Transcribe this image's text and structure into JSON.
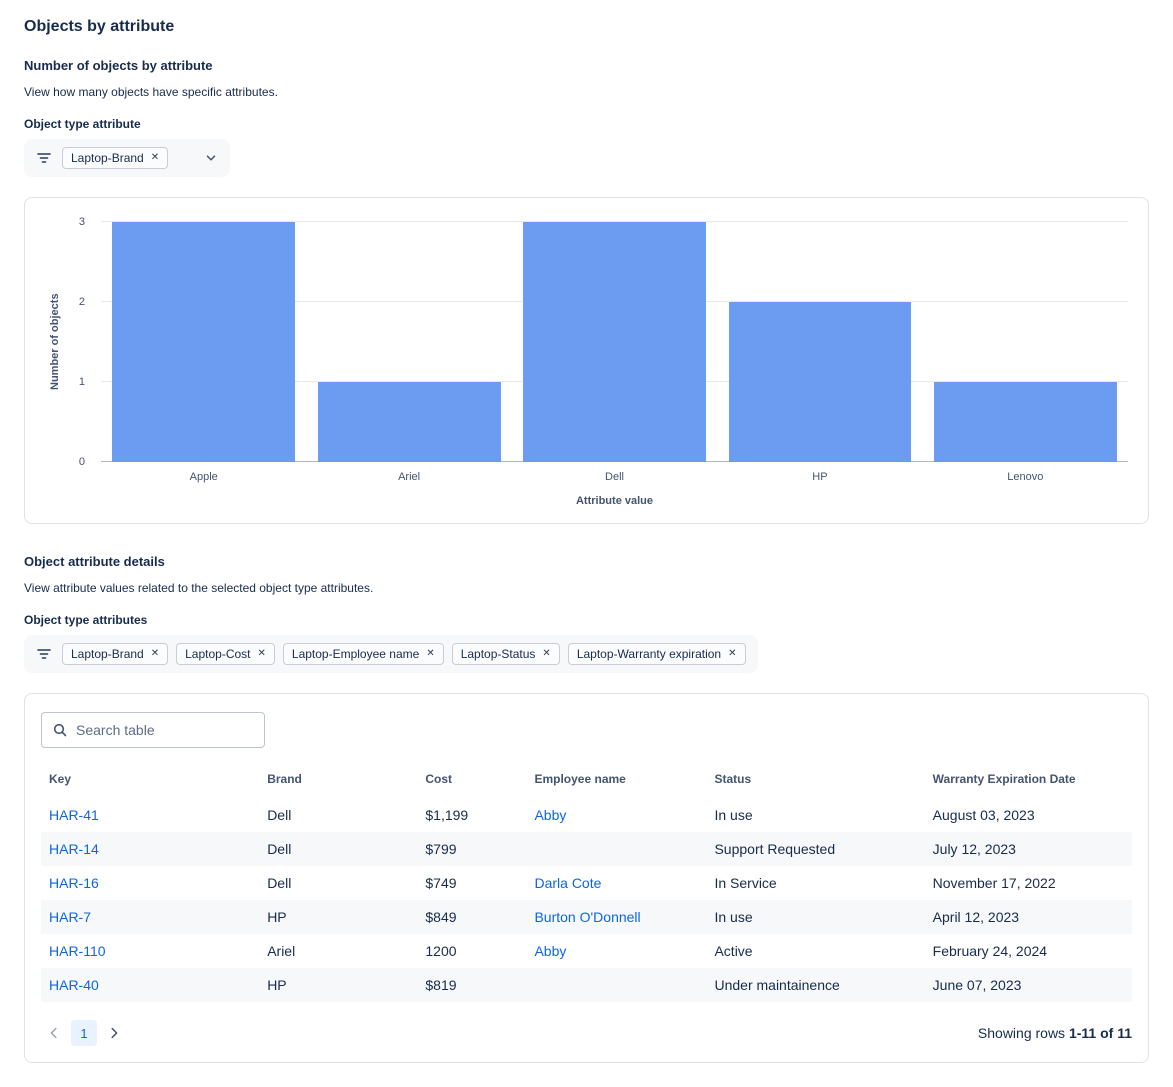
{
  "page": {
    "title": "Objects by attribute"
  },
  "chart_section": {
    "heading": "Number of objects by attribute",
    "description": "View how many objects have specific attributes.",
    "filter_label": "Object type attribute",
    "filter_chips": [
      {
        "label": "Laptop-Brand"
      }
    ]
  },
  "chart_data": {
    "type": "bar",
    "categories": [
      "Apple",
      "Ariel",
      "Dell",
      "HP",
      "Lenovo"
    ],
    "values": [
      3,
      1,
      3,
      2,
      1
    ],
    "xlabel": "Attribute value",
    "ylabel": "Number of objects",
    "ylim": [
      0,
      3
    ],
    "yticks": [
      0,
      1,
      2,
      3
    ],
    "bar_color": "#6C9BF2",
    "grid": true,
    "legend": false
  },
  "details_section": {
    "heading": "Object attribute details",
    "description": "View attribute values related to the selected object type attributes.",
    "filter_label": "Object type attributes",
    "filter_chips": [
      {
        "label": "Laptop-Brand"
      },
      {
        "label": "Laptop-Cost"
      },
      {
        "label": "Laptop-Employee name"
      },
      {
        "label": "Laptop-Status"
      },
      {
        "label": "Laptop-Warranty expiration"
      }
    ]
  },
  "table": {
    "search_placeholder": "Search table",
    "columns": [
      "Key",
      "Brand",
      "Cost",
      "Employee name",
      "Status",
      "Warranty Expiration Date"
    ],
    "rows": [
      {
        "key": "HAR-41",
        "brand": "Dell",
        "cost": "$1,199",
        "employee": "Abby",
        "status": "In use",
        "warranty": "August 03, 2023"
      },
      {
        "key": "HAR-14",
        "brand": "Dell",
        "cost": "$799",
        "employee": "",
        "status": "Support Requested",
        "warranty": "July 12, 2023"
      },
      {
        "key": "HAR-16",
        "brand": "Dell",
        "cost": "$749",
        "employee": "Darla Cote",
        "status": "In Service",
        "warranty": "November 17, 2022"
      },
      {
        "key": "HAR-7",
        "brand": "HP",
        "cost": "$849",
        "employee": "Burton O'Donnell",
        "status": "In use",
        "warranty": "April 12, 2023"
      },
      {
        "key": "HAR-110",
        "brand": "Ariel",
        "cost": "1200",
        "employee": "Abby",
        "status": "Active",
        "warranty": "February 24, 2024"
      },
      {
        "key": "HAR-40",
        "brand": "HP",
        "cost": "$819",
        "employee": "",
        "status": "Under maintainence",
        "warranty": "June 07, 2023"
      }
    ],
    "pagination": {
      "current_page": "1",
      "summary_prefix": "Showing rows ",
      "summary_range": "1-11 of 11"
    }
  },
  "icons": {
    "chip_remove": "✕"
  }
}
